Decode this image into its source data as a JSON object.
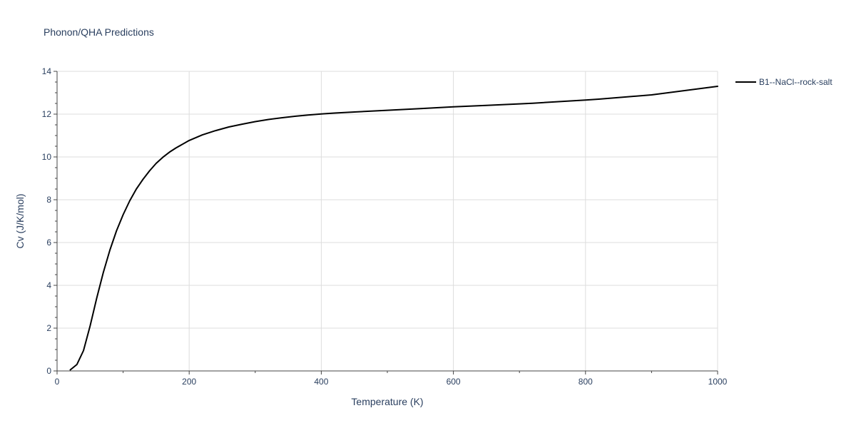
{
  "chart_data": {
    "type": "line",
    "title": "Phonon/QHA Predictions",
    "xlabel": "Temperature (K)",
    "ylabel": "Cv (J/K/mol)",
    "xlim": [
      0,
      1000
    ],
    "ylim": [
      0,
      14
    ],
    "xticks": [
      0,
      200,
      400,
      600,
      800,
      1000
    ],
    "yticks": [
      0,
      2,
      4,
      6,
      8,
      10,
      12,
      14
    ],
    "grid": true,
    "legend_position": "top-right",
    "colors": {
      "series": "#000000",
      "grid": "#dddddd",
      "text": "#2a3f5f",
      "axis": "#444444"
    },
    "series": [
      {
        "name": "B1--NaCl--rock-salt",
        "x": [
          20,
          30,
          40,
          50,
          60,
          70,
          80,
          90,
          100,
          110,
          120,
          130,
          140,
          150,
          160,
          170,
          180,
          200,
          220,
          240,
          260,
          280,
          300,
          320,
          340,
          360,
          380,
          400,
          420,
          450,
          500,
          550,
          600,
          650,
          700,
          720,
          800,
          820,
          900,
          1000
        ],
        "y": [
          0.05,
          0.3,
          0.95,
          2.1,
          3.4,
          4.6,
          5.65,
          6.55,
          7.3,
          7.95,
          8.5,
          8.95,
          9.35,
          9.7,
          9.98,
          10.22,
          10.42,
          10.77,
          11.03,
          11.23,
          11.4,
          11.53,
          11.65,
          11.75,
          11.83,
          11.9,
          11.96,
          12.01,
          12.05,
          12.1,
          12.18,
          12.26,
          12.34,
          12.41,
          12.48,
          12.51,
          12.66,
          12.7,
          12.9,
          13.3
        ]
      }
    ]
  }
}
